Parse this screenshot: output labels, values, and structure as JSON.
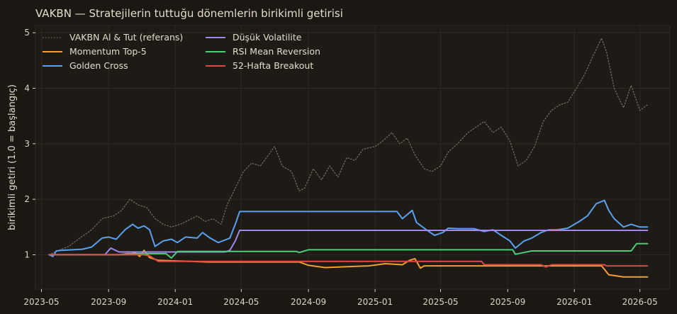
{
  "colors": {
    "background": "#1b1813",
    "plot_background": "#1e1b16",
    "grid": "#2c2922",
    "text": "#e4dccb",
    "tick_text": "#ddd5c4",
    "reference": "#777065"
  },
  "chart_data": {
    "type": "line",
    "title": "VAKBN — Stratejilerin tuttuğu dönemlerin birikimli getirisi",
    "xlabel": "",
    "ylabel": "birikimli getiri (1.0 = başlangıç)",
    "xlim": [
      "2023-04-20",
      "2026-06-25"
    ],
    "ylim": [
      0.38,
      5.13
    ],
    "grid": true,
    "legend_placement": "top-left",
    "x_ticks": [
      {
        "date": "2023-05-01",
        "label": "2023-05"
      },
      {
        "date": "2023-09-01",
        "label": "2023-09"
      },
      {
        "date": "2024-01-01",
        "label": "2024-01"
      },
      {
        "date": "2024-05-01",
        "label": "2024-05"
      },
      {
        "date": "2024-09-01",
        "label": "2024-09"
      },
      {
        "date": "2025-01-01",
        "label": "2025-01"
      },
      {
        "date": "2025-05-01",
        "label": "2025-05"
      },
      {
        "date": "2025-09-01",
        "label": "2025-09"
      },
      {
        "date": "2026-01-01",
        "label": "2026-01"
      },
      {
        "date": "2026-05-01",
        "label": "2026-05"
      }
    ],
    "y_ticks": [
      1,
      2,
      3,
      4,
      5
    ],
    "series": [
      {
        "name": "VAKBN Al & Tut (referans)",
        "color": "#777065",
        "style": "dotted",
        "points": [
          [
            "2023-05-15",
            1.0
          ],
          [
            "2023-06-01",
            1.08
          ],
          [
            "2023-06-20",
            1.15
          ],
          [
            "2023-07-10",
            1.3
          ],
          [
            "2023-08-01",
            1.45
          ],
          [
            "2023-08-20",
            1.65
          ],
          [
            "2023-09-10",
            1.7
          ],
          [
            "2023-09-25",
            1.8
          ],
          [
            "2023-10-10",
            2.0
          ],
          [
            "2023-10-25",
            1.9
          ],
          [
            "2023-11-10",
            1.85
          ],
          [
            "2023-11-25",
            1.65
          ],
          [
            "2023-12-10",
            1.55
          ],
          [
            "2023-12-25",
            1.5
          ],
          [
            "2024-01-10",
            1.55
          ],
          [
            "2024-01-25",
            1.62
          ],
          [
            "2024-02-10",
            1.7
          ],
          [
            "2024-02-25",
            1.6
          ],
          [
            "2024-03-10",
            1.65
          ],
          [
            "2024-03-25",
            1.55
          ],
          [
            "2024-04-05",
            1.9
          ],
          [
            "2024-04-20",
            2.2
          ],
          [
            "2024-05-05",
            2.5
          ],
          [
            "2024-05-20",
            2.65
          ],
          [
            "2024-06-05",
            2.6
          ],
          [
            "2024-06-20",
            2.8
          ],
          [
            "2024-07-01",
            2.95
          ],
          [
            "2024-07-15",
            2.6
          ],
          [
            "2024-08-01",
            2.5
          ],
          [
            "2024-08-15",
            2.15
          ],
          [
            "2024-08-25",
            2.2
          ],
          [
            "2024-09-10",
            2.55
          ],
          [
            "2024-09-25",
            2.35
          ],
          [
            "2024-10-10",
            2.6
          ],
          [
            "2024-10-25",
            2.4
          ],
          [
            "2024-11-10",
            2.75
          ],
          [
            "2024-11-25",
            2.7
          ],
          [
            "2024-12-10",
            2.9
          ],
          [
            "2025-01-01",
            2.95
          ],
          [
            "2025-01-15",
            3.05
          ],
          [
            "2025-02-01",
            3.2
          ],
          [
            "2025-02-15",
            3.0
          ],
          [
            "2025-03-01",
            3.1
          ],
          [
            "2025-03-15",
            2.8
          ],
          [
            "2025-04-01",
            2.55
          ],
          [
            "2025-04-15",
            2.5
          ],
          [
            "2025-05-01",
            2.6
          ],
          [
            "2025-05-15",
            2.85
          ],
          [
            "2025-06-01",
            3.0
          ],
          [
            "2025-06-20",
            3.2
          ],
          [
            "2025-07-05",
            3.3
          ],
          [
            "2025-07-20",
            3.4
          ],
          [
            "2025-08-05",
            3.2
          ],
          [
            "2025-08-20",
            3.3
          ],
          [
            "2025-09-05",
            3.05
          ],
          [
            "2025-09-20",
            2.6
          ],
          [
            "2025-10-05",
            2.7
          ],
          [
            "2025-10-20",
            2.95
          ],
          [
            "2025-11-05",
            3.4
          ],
          [
            "2025-11-20",
            3.6
          ],
          [
            "2025-12-05",
            3.7
          ],
          [
            "2025-12-20",
            3.75
          ],
          [
            "2026-01-05",
            4.0
          ],
          [
            "2026-01-20",
            4.25
          ],
          [
            "2026-02-05",
            4.6
          ],
          [
            "2026-02-20",
            4.9
          ],
          [
            "2026-03-01",
            4.65
          ],
          [
            "2026-03-15",
            4.0
          ],
          [
            "2026-04-01",
            3.65
          ],
          [
            "2026-04-15",
            4.05
          ],
          [
            "2026-05-01",
            3.6
          ],
          [
            "2026-05-15",
            3.7
          ]
        ]
      },
      {
        "name": "Momentum Top-5",
        "color": "#f0a030",
        "style": "solid",
        "points": [
          [
            "2023-05-15",
            1.0
          ],
          [
            "2023-10-01",
            1.0
          ],
          [
            "2023-10-20",
            1.03
          ],
          [
            "2023-10-28",
            0.97
          ],
          [
            "2023-11-05",
            1.08
          ],
          [
            "2023-11-15",
            0.95
          ],
          [
            "2023-12-01",
            0.9
          ],
          [
            "2024-03-01",
            0.87
          ],
          [
            "2024-08-15",
            0.87
          ],
          [
            "2024-09-01",
            0.81
          ],
          [
            "2024-10-01",
            0.77
          ],
          [
            "2024-12-20",
            0.8
          ],
          [
            "2025-01-20",
            0.84
          ],
          [
            "2025-02-20",
            0.82
          ],
          [
            "2025-03-05",
            0.9
          ],
          [
            "2025-03-15",
            0.93
          ],
          [
            "2025-03-25",
            0.76
          ],
          [
            "2025-04-01",
            0.8
          ],
          [
            "2026-02-01",
            0.8
          ],
          [
            "2026-02-20",
            0.8
          ],
          [
            "2026-03-05",
            0.64
          ],
          [
            "2026-04-01",
            0.6
          ],
          [
            "2026-05-15",
            0.6
          ]
        ]
      },
      {
        "name": "Golden Cross",
        "color": "#5aa0f0",
        "style": "solid",
        "points": [
          [
            "2023-05-15",
            1.0
          ],
          [
            "2023-05-22",
            0.97
          ],
          [
            "2023-05-28",
            1.07
          ],
          [
            "2023-06-05",
            1.08
          ],
          [
            "2023-07-15",
            1.1
          ],
          [
            "2023-08-01",
            1.14
          ],
          [
            "2023-08-20",
            1.3
          ],
          [
            "2023-09-01",
            1.32
          ],
          [
            "2023-09-15",
            1.28
          ],
          [
            "2023-10-01",
            1.45
          ],
          [
            "2023-10-15",
            1.55
          ],
          [
            "2023-10-25",
            1.48
          ],
          [
            "2023-11-05",
            1.52
          ],
          [
            "2023-11-15",
            1.45
          ],
          [
            "2023-11-25",
            1.15
          ],
          [
            "2023-12-10",
            1.25
          ],
          [
            "2023-12-25",
            1.28
          ],
          [
            "2024-01-05",
            1.22
          ],
          [
            "2024-01-20",
            1.32
          ],
          [
            "2024-02-10",
            1.3
          ],
          [
            "2024-02-20",
            1.4
          ],
          [
            "2024-03-05",
            1.3
          ],
          [
            "2024-03-20",
            1.22
          ],
          [
            "2024-04-05",
            1.28
          ],
          [
            "2024-04-10",
            1.3
          ],
          [
            "2024-04-20",
            1.55
          ],
          [
            "2024-04-28",
            1.78
          ],
          [
            "2025-02-10",
            1.78
          ],
          [
            "2025-02-20",
            1.65
          ],
          [
            "2025-03-10",
            1.8
          ],
          [
            "2025-03-18",
            1.58
          ],
          [
            "2025-04-05",
            1.45
          ],
          [
            "2025-04-20",
            1.35
          ],
          [
            "2025-05-05",
            1.4
          ],
          [
            "2025-05-15",
            1.48
          ],
          [
            "2025-06-01",
            1.47
          ],
          [
            "2025-07-01",
            1.47
          ],
          [
            "2025-07-20",
            1.42
          ],
          [
            "2025-08-05",
            1.45
          ],
          [
            "2025-08-20",
            1.35
          ],
          [
            "2025-09-05",
            1.25
          ],
          [
            "2025-09-15",
            1.12
          ],
          [
            "2025-10-01",
            1.25
          ],
          [
            "2025-10-15",
            1.3
          ],
          [
            "2025-11-01",
            1.4
          ],
          [
            "2025-11-15",
            1.45
          ],
          [
            "2025-12-01",
            1.45
          ],
          [
            "2025-12-20",
            1.48
          ],
          [
            "2026-01-10",
            1.6
          ],
          [
            "2026-01-25",
            1.7
          ],
          [
            "2026-02-10",
            1.92
          ],
          [
            "2026-02-25",
            1.98
          ],
          [
            "2026-03-05",
            1.8
          ],
          [
            "2026-03-15",
            1.65
          ],
          [
            "2026-04-01",
            1.5
          ],
          [
            "2026-04-15",
            1.55
          ],
          [
            "2026-05-01",
            1.5
          ],
          [
            "2026-05-15",
            1.5
          ]
        ]
      },
      {
        "name": "Düşük Volatilite",
        "color": "#a585f0",
        "style": "solid",
        "points": [
          [
            "2023-05-15",
            1.0
          ],
          [
            "2023-08-25",
            1.0
          ],
          [
            "2023-09-05",
            1.12
          ],
          [
            "2023-09-20",
            1.05
          ],
          [
            "2023-10-01",
            1.05
          ],
          [
            "2024-04-01",
            1.05
          ],
          [
            "2024-04-10",
            1.08
          ],
          [
            "2024-04-20",
            1.25
          ],
          [
            "2024-04-28",
            1.44
          ],
          [
            "2025-07-01",
            1.44
          ],
          [
            "2025-07-20",
            1.44
          ],
          [
            "2025-08-05",
            1.44
          ],
          [
            "2026-05-15",
            1.44
          ]
        ]
      },
      {
        "name": "RSI Mean Reversion",
        "color": "#4ccc7a",
        "style": "solid",
        "points": [
          [
            "2023-05-15",
            1.0
          ],
          [
            "2023-09-20",
            1.0
          ],
          [
            "2023-10-05",
            1.02
          ],
          [
            "2023-12-15",
            1.02
          ],
          [
            "2023-12-25",
            0.94
          ],
          [
            "2024-01-05",
            1.06
          ],
          [
            "2024-08-10",
            1.06
          ],
          [
            "2024-08-15",
            1.04
          ],
          [
            "2024-08-25",
            1.07
          ],
          [
            "2024-09-01",
            1.09
          ],
          [
            "2025-09-10",
            1.09
          ],
          [
            "2025-09-15",
            1.01
          ],
          [
            "2025-10-15",
            1.07
          ],
          [
            "2026-04-15",
            1.07
          ],
          [
            "2026-04-25",
            1.2
          ],
          [
            "2026-05-15",
            1.2
          ]
        ]
      },
      {
        "name": "52-Hafta Breakout",
        "color": "#e04848",
        "style": "solid",
        "points": [
          [
            "2023-05-15",
            1.0
          ],
          [
            "2023-11-05",
            1.0
          ],
          [
            "2023-11-15",
            0.98
          ],
          [
            "2023-12-01",
            0.88
          ],
          [
            "2025-07-15",
            0.88
          ],
          [
            "2025-07-20",
            0.82
          ],
          [
            "2025-11-01",
            0.82
          ],
          [
            "2025-11-10",
            0.78
          ],
          [
            "2025-11-20",
            0.82
          ],
          [
            "2026-02-25",
            0.82
          ],
          [
            "2026-03-01",
            0.8
          ],
          [
            "2026-05-15",
            0.8
          ]
        ]
      }
    ]
  }
}
